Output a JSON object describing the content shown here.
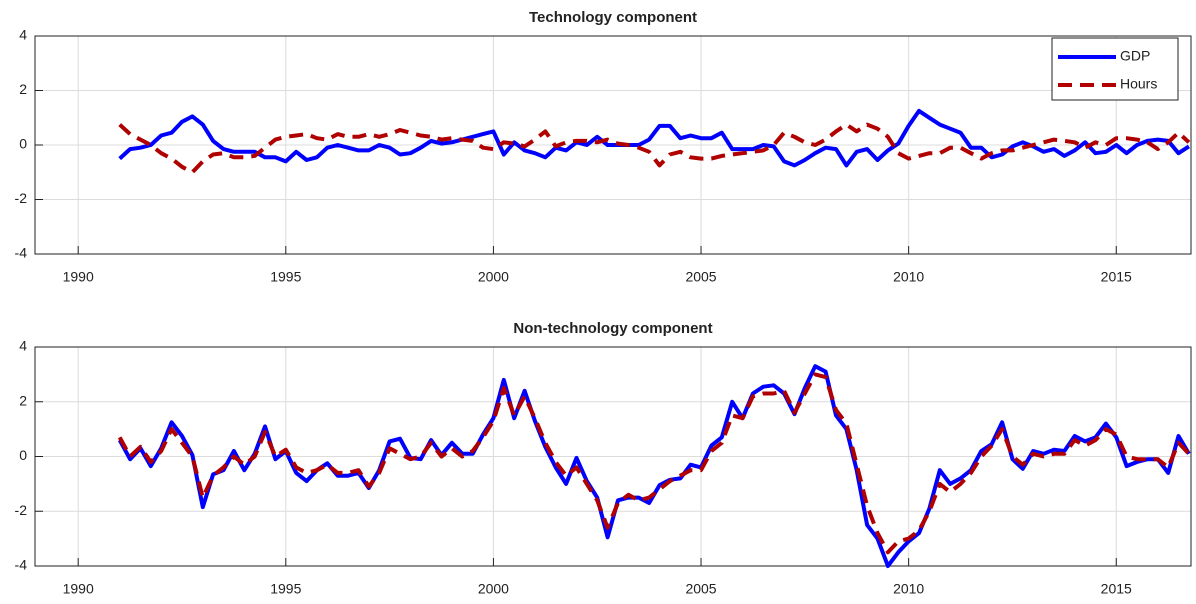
{
  "chart_data": [
    {
      "type": "line",
      "title": "Technology component",
      "x": [
        1991,
        1991.25,
        1991.5,
        1991.75,
        1992,
        1992.25,
        1992.5,
        1992.75,
        1993,
        1993.25,
        1993.5,
        1993.75,
        1994,
        1994.25,
        1994.5,
        1994.75,
        1995,
        1995.25,
        1995.5,
        1995.75,
        1996,
        1996.25,
        1996.5,
        1996.75,
        1997,
        1997.25,
        1997.5,
        1997.75,
        1998,
        1998.25,
        1998.5,
        1998.75,
        1999,
        1999.25,
        1999.5,
        1999.75,
        2000,
        2000.25,
        2000.5,
        2000.75,
        2001,
        2001.25,
        2001.5,
        2001.75,
        2002,
        2002.25,
        2002.5,
        2002.75,
        2003,
        2003.25,
        2003.5,
        2003.75,
        2004,
        2004.25,
        2004.5,
        2004.75,
        2005,
        2005.25,
        2005.5,
        2005.75,
        2006,
        2006.25,
        2006.5,
        2006.75,
        2007,
        2007.25,
        2007.5,
        2007.75,
        2008,
        2008.25,
        2008.5,
        2008.75,
        2009,
        2009.25,
        2009.5,
        2009.75,
        2010,
        2010.25,
        2010.5,
        2010.75,
        2011,
        2011.25,
        2011.5,
        2011.75,
        2012,
        2012.25,
        2012.5,
        2012.75,
        2013,
        2013.25,
        2013.5,
        2013.75,
        2014,
        2014.25,
        2014.5,
        2014.75,
        2015,
        2015.25,
        2015.5,
        2015.75,
        2016,
        2016.25,
        2016.5,
        2016.75
      ],
      "series": [
        {
          "name": "GDP",
          "color": "#0000ff",
          "dashed": false,
          "values": [
            -0.5,
            -0.15,
            -0.1,
            0.0,
            0.35,
            0.45,
            0.85,
            1.05,
            0.75,
            0.15,
            -0.15,
            -0.25,
            -0.25,
            -0.25,
            -0.45,
            -0.45,
            -0.6,
            -0.25,
            -0.55,
            -0.45,
            -0.1,
            0.0,
            -0.1,
            -0.2,
            -0.2,
            0.0,
            -0.1,
            -0.35,
            -0.3,
            -0.1,
            0.15,
            0.05,
            0.1,
            0.2,
            0.3,
            0.4,
            0.5,
            -0.35,
            0.1,
            -0.2,
            -0.3,
            -0.45,
            -0.1,
            -0.2,
            0.1,
            0.0,
            0.3,
            0.0,
            0.0,
            0.0,
            0.0,
            0.2,
            0.7,
            0.7,
            0.25,
            0.35,
            0.25,
            0.25,
            0.45,
            -0.15,
            -0.15,
            -0.15,
            0.0,
            -0.05,
            -0.6,
            -0.75,
            -0.55,
            -0.3,
            -0.1,
            -0.15,
            -0.75,
            -0.25,
            -0.15,
            -0.55,
            -0.2,
            0.05,
            0.7,
            1.25,
            1.0,
            0.75,
            0.6,
            0.45,
            -0.1,
            -0.1,
            -0.45,
            -0.35,
            -0.05,
            0.1,
            -0.05,
            -0.25,
            -0.15,
            -0.4,
            -0.2,
            0.1,
            -0.3,
            -0.25,
            0.0,
            -0.3,
            0.0,
            0.15,
            0.2,
            0.15,
            -0.3,
            -0.05
          ]
        },
        {
          "name": "Hours",
          "color": "#b00000",
          "dashed": true,
          "values": [
            0.75,
            0.4,
            0.2,
            0.0,
            -0.3,
            -0.5,
            -0.8,
            -1.0,
            -0.6,
            -0.35,
            -0.3,
            -0.45,
            -0.45,
            -0.4,
            -0.1,
            0.2,
            0.3,
            0.35,
            0.4,
            0.25,
            0.2,
            0.4,
            0.3,
            0.3,
            0.4,
            0.3,
            0.4,
            0.55,
            0.45,
            0.35,
            0.3,
            0.2,
            0.25,
            0.2,
            0.15,
            -0.1,
            -0.15,
            0.1,
            0.05,
            -0.05,
            0.2,
            0.5,
            -0.05,
            0.1,
            0.15,
            0.15,
            0.1,
            0.2,
            0.05,
            0.0,
            -0.1,
            -0.25,
            -0.75,
            -0.35,
            -0.25,
            -0.45,
            -0.5,
            -0.5,
            -0.4,
            -0.35,
            -0.3,
            -0.25,
            -0.2,
            0.0,
            0.45,
            0.3,
            0.1,
            0.0,
            0.2,
            0.5,
            0.75,
            0.5,
            0.75,
            0.6,
            0.3,
            -0.3,
            -0.5,
            -0.4,
            -0.3,
            -0.3,
            -0.1,
            -0.1,
            -0.3,
            -0.5,
            -0.3,
            -0.2,
            -0.2,
            -0.1,
            0.0,
            0.1,
            0.2,
            0.15,
            0.1,
            -0.1,
            0.1,
            0.0,
            0.25,
            0.25,
            0.2,
            0.1,
            -0.15,
            0.1,
            0.45,
            0.1
          ]
        }
      ],
      "xlim": [
        1988.96,
        2016.8
      ],
      "xticks": [
        1990,
        1995,
        2000,
        2005,
        2010,
        2015
      ],
      "ylim": [
        -4,
        4
      ],
      "yticks": [
        -4,
        -2,
        0,
        2,
        4
      ],
      "grid": true,
      "legend": "northeast"
    },
    {
      "type": "line",
      "title": "Non-technology component",
      "x": [
        1991,
        1991.25,
        1991.5,
        1991.75,
        1992,
        1992.25,
        1992.5,
        1992.75,
        1993,
        1993.25,
        1993.5,
        1993.75,
        1994,
        1994.25,
        1994.5,
        1994.75,
        1995,
        1995.25,
        1995.5,
        1995.75,
        1996,
        1996.25,
        1996.5,
        1996.75,
        1997,
        1997.25,
        1997.5,
        1997.75,
        1998,
        1998.25,
        1998.5,
        1998.75,
        1999,
        1999.25,
        1999.5,
        1999.75,
        2000,
        2000.25,
        2000.5,
        2000.75,
        2001,
        2001.25,
        2001.5,
        2001.75,
        2002,
        2002.25,
        2002.5,
        2002.75,
        2003,
        2003.25,
        2003.5,
        2003.75,
        2004,
        2004.25,
        2004.5,
        2004.75,
        2005,
        2005.25,
        2005.5,
        2005.75,
        2006,
        2006.25,
        2006.5,
        2006.75,
        2007,
        2007.25,
        2007.5,
        2007.75,
        2008,
        2008.25,
        2008.5,
        2008.75,
        2009,
        2009.25,
        2009.5,
        2009.75,
        2010,
        2010.25,
        2010.5,
        2010.75,
        2011,
        2011.25,
        2011.5,
        2011.75,
        2012,
        2012.25,
        2012.5,
        2012.75,
        2013,
        2013.25,
        2013.5,
        2013.75,
        2014,
        2014.25,
        2014.5,
        2014.75,
        2015,
        2015.25,
        2015.5,
        2015.75,
        2016,
        2016.25,
        2016.5,
        2016.75
      ],
      "series": [
        {
          "color": "#0000ff",
          "dashed": false,
          "values": [
            0.6,
            -0.1,
            0.3,
            -0.35,
            0.3,
            1.25,
            0.75,
            0.05,
            -1.85,
            -0.65,
            -0.5,
            0.2,
            -0.5,
            0.1,
            1.1,
            -0.1,
            0.2,
            -0.6,
            -0.9,
            -0.5,
            -0.25,
            -0.7,
            -0.7,
            -0.6,
            -1.15,
            -0.5,
            0.55,
            0.65,
            -0.05,
            -0.1,
            0.6,
            0.05,
            0.5,
            0.1,
            0.1,
            0.8,
            1.4,
            2.8,
            1.4,
            2.4,
            1.3,
            0.35,
            -0.4,
            -1.0,
            -0.05,
            -0.9,
            -1.5,
            -2.95,
            -1.6,
            -1.5,
            -1.5,
            -1.7,
            -1.05,
            -0.85,
            -0.8,
            -0.3,
            -0.4,
            0.4,
            0.7,
            2.0,
            1.4,
            2.3,
            2.55,
            2.6,
            2.3,
            1.55,
            2.5,
            3.3,
            3.1,
            1.5,
            1.0,
            -0.5,
            -2.5,
            -3.0,
            -4.0,
            -3.5,
            -3.1,
            -2.8,
            -1.9,
            -0.5,
            -1.0,
            -0.8,
            -0.5,
            0.2,
            0.45,
            1.25,
            -0.1,
            -0.45,
            0.2,
            0.1,
            0.25,
            0.2,
            0.75,
            0.55,
            0.7,
            1.2,
            0.7,
            -0.35,
            -0.2,
            -0.1,
            -0.1,
            -0.6,
            0.75,
            0.1
          ]
        },
        {
          "color": "#b00000",
          "dashed": true,
          "values": [
            0.7,
            0.0,
            0.35,
            -0.2,
            0.2,
            1.0,
            0.5,
            0.0,
            -1.5,
            -0.7,
            -0.4,
            0.0,
            -0.3,
            0.0,
            0.9,
            0.0,
            0.25,
            -0.4,
            -0.6,
            -0.5,
            -0.3,
            -0.6,
            -0.6,
            -0.5,
            -1.1,
            -0.6,
            0.3,
            0.1,
            -0.1,
            0.0,
            0.5,
            0.0,
            0.3,
            0.0,
            0.2,
            0.7,
            1.3,
            2.5,
            1.5,
            2.2,
            1.4,
            0.5,
            -0.2,
            -0.7,
            -0.4,
            -1.0,
            -1.6,
            -2.6,
            -1.7,
            -1.4,
            -1.6,
            -1.5,
            -1.2,
            -0.9,
            -0.7,
            -0.5,
            -0.5,
            0.2,
            0.5,
            1.5,
            1.4,
            2.2,
            2.3,
            2.3,
            2.4,
            1.6,
            2.3,
            3.0,
            2.9,
            1.7,
            1.2,
            -0.3,
            -1.8,
            -2.8,
            -3.5,
            -3.1,
            -3.0,
            -2.7,
            -2.0,
            -1.0,
            -1.3,
            -1.0,
            -0.6,
            0.0,
            0.4,
            1.0,
            0.0,
            -0.3,
            0.1,
            0.0,
            0.1,
            0.1,
            0.6,
            0.4,
            0.6,
            1.0,
            0.8,
            0.0,
            -0.1,
            -0.1,
            -0.1,
            -0.4,
            0.5,
            0.1
          ]
        }
      ],
      "xlim": [
        1988.96,
        2016.8
      ],
      "xticks": [
        1990,
        1995,
        2000,
        2005,
        2010,
        2015
      ],
      "ylim": [
        -4,
        4
      ],
      "yticks": [
        -4,
        -2,
        0,
        2,
        4
      ],
      "grid": true
    }
  ]
}
